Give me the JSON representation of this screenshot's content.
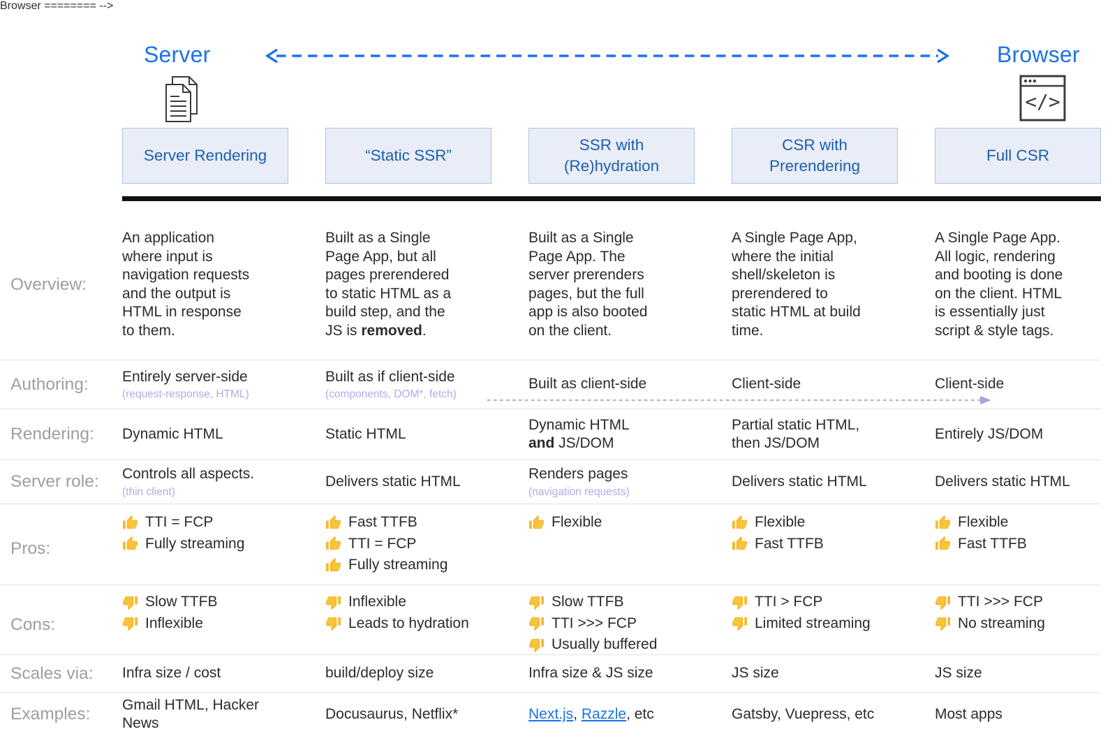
{
  "header": {
    "server_label": "Server",
    "browser_label": "Browser",
    "server_icon": "documents-icon",
    "browser_icon": "browser-code-icon"
  },
  "columns": [
    {
      "title": "Server Rendering"
    },
    {
      "title": "“Static SSR”"
    },
    {
      "title": "SSR with\n(Re)hydration"
    },
    {
      "title": "CSR with\nPrerendering"
    },
    {
      "title": "Full CSR"
    }
  ],
  "rows": {
    "overview": {
      "label": "Overview:",
      "cells": [
        "An application\nwhere input is\nnavigation requests\nand the output is\nHTML in response\nto them.",
        "Built as a Single\nPage App, but all\npages prerendered\nto static HTML as a\nbuild step, and the\nJS is **removed**.",
        "Built as a Single\nPage App. The\nserver prerenders\npages, but the full\napp is also booted\non the client.",
        "A Single Page App,\nwhere the initial\nshell/skeleton is\nprerendered to\nstatic HTML at build\ntime.",
        "A Single Page App.\nAll logic, rendering\nand booting is done\non the client. HTML\nis essentially just\nscript & style tags."
      ]
    },
    "authoring": {
      "label": "Authoring:",
      "cells": [
        {
          "main": "Entirely server-side",
          "sub": "(request-response, HTML)"
        },
        {
          "main": "Built as if client-side",
          "sub": "(components, DOM*, fetch)"
        },
        {
          "main": "Built as client-side"
        },
        {
          "main": "Client-side"
        },
        {
          "main": "Client-side"
        }
      ]
    },
    "rendering": {
      "label": "Rendering:",
      "cells": [
        "Dynamic HTML",
        "Static HTML",
        "Dynamic HTML\n**and** JS/DOM",
        "Partial static HTML,\nthen JS/DOM",
        "Entirely JS/DOM"
      ]
    },
    "server_role": {
      "label": "Server role:",
      "cells": [
        {
          "main": "Controls all aspects.",
          "sub": "(thin client)"
        },
        {
          "main": "Delivers static HTML"
        },
        {
          "main": "Renders pages",
          "sub": "(navigation requests)"
        },
        {
          "main": "Delivers static HTML"
        },
        {
          "main": "Delivers static HTML"
        }
      ]
    },
    "pros": {
      "label": "Pros:",
      "cells": [
        [
          "TTI = FCP",
          "Fully streaming"
        ],
        [
          "Fast TTFB",
          "TTI = FCP",
          "Fully streaming"
        ],
        [
          "Flexible"
        ],
        [
          "Flexible",
          "Fast TTFB"
        ],
        [
          "Flexible",
          "Fast TTFB"
        ]
      ]
    },
    "cons": {
      "label": "Cons:",
      "cells": [
        [
          "Slow TTFB",
          "Inflexible"
        ],
        [
          "Inflexible",
          "Leads to hydration"
        ],
        [
          "Slow TTFB",
          "TTI >>> FCP",
          "Usually buffered"
        ],
        [
          "TTI > FCP",
          "Limited streaming"
        ],
        [
          "TTI >>> FCP",
          "No streaming"
        ]
      ]
    },
    "scales": {
      "label": "Scales via:",
      "cells": [
        "Infra size / cost",
        "build/deploy size",
        "Infra size & JS size",
        "JS size",
        "JS size"
      ]
    },
    "examples": {
      "label": "Examples:",
      "cells": [
        "Gmail HTML, Hacker News",
        "Docusaurus, Netflix*",
        {
          "segments": [
            {
              "text": "Next.js",
              "link": true
            },
            {
              "text": ", "
            },
            {
              "text": "Razzle",
              "link": true
            },
            {
              "text": ", etc"
            }
          ]
        },
        "Gatsby, Vuepress, etc",
        "Most apps"
      ]
    }
  },
  "colors": {
    "accent_blue": "#1a73e8",
    "box_text_blue": "#1b5fae",
    "box_fill": "#e9edf7",
    "box_border": "#a8c4e5",
    "label_gray": "#9e9e9e",
    "sub_lavender": "#aeace6",
    "thumb_yellow": "#f7b92c",
    "divider_gray": "#e3e3e3",
    "thick_line": "#101010"
  }
}
